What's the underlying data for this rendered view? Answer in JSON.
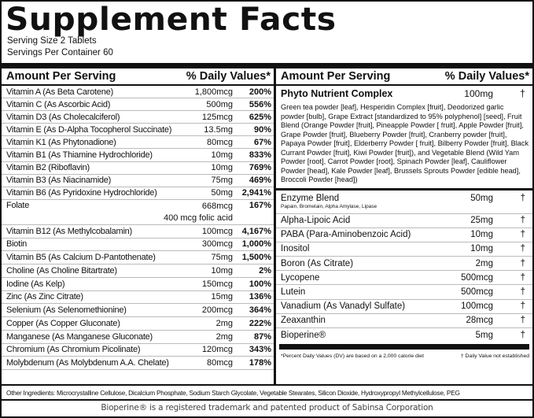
{
  "title": "Supplement Facts",
  "serving_size": "Serving Size 2 Tablets",
  "servings_per_container": "Servings Per Container 60",
  "left": {
    "header_amount": "Amount Per Serving",
    "header_dv": "% Daily Values*",
    "rows": [
      {
        "name": "Vitamin A (As Beta Carotene)",
        "amount": "1,800mcg",
        "dv": "200%"
      },
      {
        "name": "Vitamin C (As Ascorbic Acid)",
        "amount": "500mg",
        "dv": "556%"
      },
      {
        "name": "Vitamin D3 (As Cholecalciferol)",
        "amount": "125mcg",
        "dv": "625%"
      },
      {
        "name": "Vitamin E (As D-Alpha Tocopherol Succinate)",
        "amount": "13.5mg",
        "dv": "90%"
      },
      {
        "name": "Vitamin K1 (As Phytonadione)",
        "amount": "80mcg",
        "dv": "67%"
      },
      {
        "name": "Vitamin B1 (As Thiamine Hydrochloride)",
        "amount": "10mg",
        "dv": "833%"
      },
      {
        "name": "Vitamin B2 (Riboflavin)",
        "amount": "10mg",
        "dv": "769%"
      },
      {
        "name": "Vitamin B3 (As Niacinamide)",
        "amount": "75mg",
        "dv": "469%"
      },
      {
        "name": "Vitamin B6 (As Pyridoxine Hydrochloride)",
        "amount": "50mg",
        "dv": "2,941%"
      },
      {
        "name": "Folate",
        "amount": "668mcg",
        "amount2": "400 mcg folic acid",
        "dv": "167%"
      },
      {
        "name": "Vitamin B12 (As Methylcobalamin)",
        "amount": "100mcg",
        "dv": "4,167%"
      },
      {
        "name": "Biotin",
        "amount": "300mcg",
        "dv": "1,000%"
      },
      {
        "name": "Vitamin B5 (As Calcium D-Pantothenate)",
        "amount": "75mg",
        "dv": "1,500%"
      },
      {
        "name": "Choline (As Choline Bitartrate)",
        "amount": "10mg",
        "dv": "2%"
      },
      {
        "name": "Iodine (As Kelp)",
        "amount": "150mcg",
        "dv": "100%"
      },
      {
        "name": "Zinc (As Zinc Citrate)",
        "amount": "15mg",
        "dv": "136%"
      },
      {
        "name": "Selenium (As Selenomethionine)",
        "amount": "200mcg",
        "dv": "364%"
      },
      {
        "name": "Copper (As Copper Gluconate)",
        "amount": "2mg",
        "dv": "222%"
      },
      {
        "name": "Manganese (As Manganese Gluconate)",
        "amount": "2mg",
        "dv": "87%"
      },
      {
        "name": "Chromium (As Chromium Picolinate)",
        "amount": "120mcg",
        "dv": "343%"
      },
      {
        "name": "Molybdenum (As Molybdenum A.A. Chelate)",
        "amount": "80mcg",
        "dv": "178%"
      }
    ]
  },
  "right": {
    "header_amount": "Amount Per Serving",
    "header_dv": "% Daily Values*",
    "phyto": {
      "name": "Phyto Nutrient Complex",
      "amount": "100mg",
      "dv": "†",
      "ingredients": "Green tea powder [leaf], Hesperidin Complex [fruit], Deodorized garlic powder [bulb], Grape Extract [standardized to 95% polyphenol] [seed], Fruit Blend (Orange Powder [fruit], Pineapple Powder [ fruit], Apple Powder [fruit], Grape Powder [fruit], Blueberry Powder [fruit], Cranberry powder [fruit], Papaya Powder [fruit], Elderberry Powder [ fruit], Bilberry Powder [fruit], Black Currant Powder [fruit], Kiwi Powder [fruit]), and Vegetable Blend (Wild Yam Powder [root], Carrot Powder [root], Spinach Powder [leaf], Cauliflower Powder [head], Kale Powder [leaf], Brussels Sprouts Powder [edible head], Broccoli Powder [head])"
    },
    "enzyme": {
      "name": "Enzyme Blend",
      "sub": "Papain, Bromelain, Alpha Amylase, Lipase",
      "amount": "50mg",
      "dv": "†"
    },
    "rows": [
      {
        "name": "Alpha-Lipoic Acid",
        "amount": "25mg",
        "dv": "†"
      },
      {
        "name": "PABA (Para-Aminobenzoic Acid)",
        "amount": "10mg",
        "dv": "†"
      },
      {
        "name": "Inositol",
        "amount": "10mg",
        "dv": "†"
      },
      {
        "name": "Boron (As Citrate)",
        "amount": "2mg",
        "dv": "†"
      },
      {
        "name": "Lycopene",
        "amount": "500mcg",
        "dv": "†"
      },
      {
        "name": "Lutein",
        "amount": "500mcg",
        "dv": "†"
      },
      {
        "name": "Vanadium (As Vanadyl Sulfate)",
        "amount": "100mcg",
        "dv": "†"
      },
      {
        "name": "Zeaxanthin",
        "amount": "28mcg",
        "dv": "†"
      },
      {
        "name": "Bioperine®",
        "amount": "5mg",
        "dv": "†"
      }
    ],
    "footnote_dv": "*Percent Daily Values (DV) are based on a 2,000 calorie diet",
    "footnote_dagger": "† Daily Value not established"
  },
  "other_ingredients": "Other Ingredients: Microcrystalline Cellulose, Dicalcium Phosphate, Sodium Starch Glycolate, Vegetable Stearates, Silicon Dioxide, Hydroxypropyl Methylcellulose, PEG",
  "trademark": "Bioperine® is a registered trademark and patented product of Sabinsa Corporation"
}
